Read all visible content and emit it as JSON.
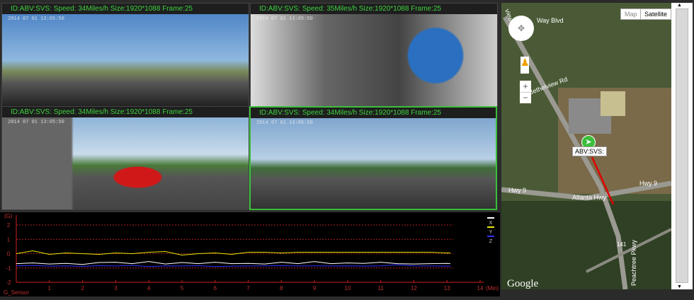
{
  "panes": [
    {
      "header": "ID:ABV:SVS: Speed: 34Miles/h  Size:1920*1088  Frame:25",
      "timestamp": "2014 07 01 13:05:50"
    },
    {
      "header": "ID:ABV:SVS: Speed: 35Miles/h  Size:1920*1088  Frame:25",
      "timestamp": "2014 07 01 13:05:50"
    },
    {
      "header": "ID:ABV:SVS: Speed: 34Miles/h  Size:1920*1088  Frame:25",
      "timestamp": "2014 07 01 13:05:50"
    },
    {
      "header": "ID:ABV:SVS: Speed: 34Miles/h  Size:1920*1088  Frame:25",
      "timestamp": "2014 07 01 13:05:50"
    }
  ],
  "chart_data": {
    "type": "line",
    "ylabel": "(G)",
    "xlabel": "G_Sensor",
    "xunit": "(Min)",
    "xlim": [
      0,
      14
    ],
    "ylim": [
      -2,
      2
    ],
    "xticks": [
      "1",
      "2",
      "3",
      "4",
      "5",
      "6",
      "7",
      "8",
      "9",
      "10",
      "11",
      "12",
      "13",
      "14"
    ],
    "yticks": [
      "2",
      "1",
      "0",
      "-1",
      "-2"
    ],
    "grid": true,
    "legend": "right",
    "x": [
      0,
      0.5,
      1,
      1.5,
      2,
      2.5,
      3,
      3.5,
      4,
      4.5,
      5,
      5.5,
      6,
      6.5,
      7,
      7.5,
      8,
      8.5,
      9,
      9.5,
      10,
      10.5,
      11,
      11.5,
      12,
      12.5,
      13,
      13.1
    ],
    "series": [
      {
        "name": "X",
        "color": "#ffffff",
        "values": [
          -0.7,
          -0.65,
          -0.72,
          -0.68,
          -0.75,
          -0.62,
          -0.6,
          -0.7,
          -0.55,
          -0.72,
          -0.62,
          -0.7,
          -0.6,
          -0.7,
          -0.68,
          -0.72,
          -0.6,
          -0.7,
          -0.55,
          -0.7,
          -0.65,
          -0.68,
          -0.6,
          -0.7,
          -0.72,
          -0.7,
          -0.68,
          -0.7
        ]
      },
      {
        "name": "Y",
        "color": "#e8e800",
        "values": [
          0,
          0.2,
          -0.05,
          0.05,
          0,
          -0.05,
          0.05,
          0,
          0.1,
          0.15,
          -0.1,
          0,
          0.05,
          -0.05,
          0.1,
          0.1,
          0.05,
          0.1,
          0.1,
          0.1,
          0.1,
          0.1,
          0.1,
          0.1,
          0.1,
          0.1,
          0.05,
          0.05
        ]
      },
      {
        "name": "Z",
        "color": "#3030ff",
        "values": [
          -0.85,
          -0.82,
          -0.87,
          -0.85,
          -0.88,
          -0.84,
          -0.86,
          -0.82,
          -0.9,
          -0.85,
          -0.86,
          -0.84,
          -0.9,
          -0.87,
          -0.86,
          -0.85,
          -0.84,
          -0.86,
          -0.85,
          -0.86,
          -0.85,
          -0.87,
          -0.85,
          -0.78,
          -0.85,
          -0.86,
          -0.87,
          -0.87
        ]
      }
    ]
  },
  "map": {
    "type_map": "Map",
    "type_satellite": "Satellite",
    "marker_label": "ABV:SVS:",
    "logo": "Google",
    "roads": [
      "Bethelview Rd",
      "Hwy 9",
      "Atlanta Hwy",
      "Hwy 9",
      "141",
      "Peachtree Pkwy",
      "Bethelview Rd",
      "Way Blvd",
      "view Rd"
    ],
    "track_color": "#e00000"
  }
}
